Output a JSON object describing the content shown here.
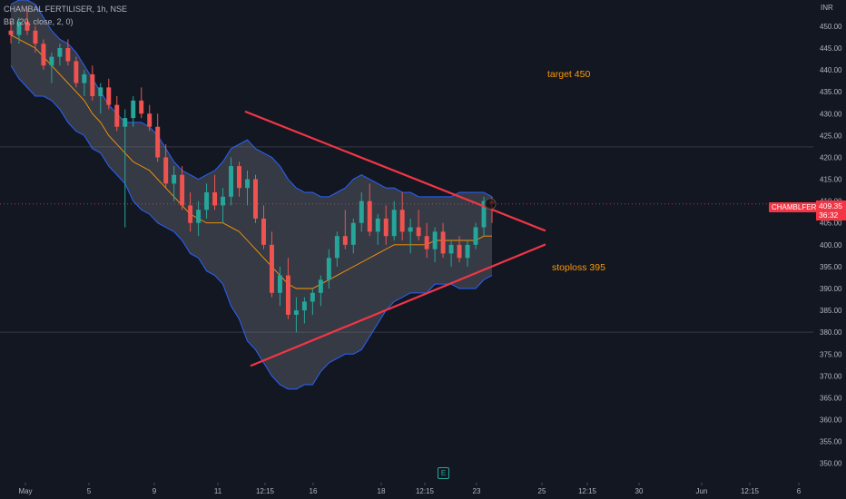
{
  "header": {
    "symbol_line": "CHAMBAL FERTILISER, 1h, NSE",
    "indicator_line": "BB (20, close, 2, 0)"
  },
  "price_axis": {
    "currency": "INR",
    "ticks": [
      "450.00",
      "445.00",
      "440.00",
      "435.00",
      "430.00",
      "425.00",
      "420.00",
      "415.00",
      "410.00",
      "405.00",
      "400.00",
      "395.00",
      "390.00",
      "385.00",
      "380.00",
      "375.00",
      "370.00",
      "365.00",
      "360.00",
      "355.00",
      "350.00"
    ]
  },
  "time_axis": {
    "ticks": [
      "May",
      "5",
      "9",
      "11",
      "12:15",
      "16",
      "18",
      "12:15",
      "23",
      "25",
      "12:15",
      "30",
      "Jun",
      "12:15",
      "6"
    ]
  },
  "last_price": {
    "symbol": "CHAMBLFERT",
    "price": "409.35",
    "countdown": "36:32"
  },
  "annotations": {
    "target": "target 450",
    "stoploss": "stoploss 395"
  },
  "chart_data": {
    "type": "candlestick",
    "ylim": [
      346,
      456
    ],
    "y_ticks": [
      450,
      445,
      440,
      435,
      430,
      425,
      420,
      415,
      410,
      405,
      400,
      395,
      390,
      385,
      380,
      375,
      370,
      365,
      360,
      355,
      350
    ],
    "horizontal_lines": [
      422.4,
      409.35,
      380.0
    ],
    "candles": [
      [
        449,
        451,
        446,
        448
      ],
      [
        448,
        452,
        446,
        451
      ],
      [
        451,
        454,
        448,
        449
      ],
      [
        449,
        450,
        444,
        446
      ],
      [
        446,
        447,
        440,
        441
      ],
      [
        441,
        444,
        437,
        443
      ],
      [
        443,
        446,
        441,
        445
      ],
      [
        445,
        447,
        441,
        442
      ],
      [
        442,
        443,
        436,
        437
      ],
      [
        437,
        440,
        434,
        439
      ],
      [
        439,
        441,
        433,
        434
      ],
      [
        434,
        437,
        430,
        436
      ],
      [
        436,
        438,
        431,
        432
      ],
      [
        432,
        434,
        426,
        427
      ],
      [
        427,
        431,
        404,
        429
      ],
      [
        429,
        434,
        427,
        433
      ],
      [
        433,
        436,
        429,
        430
      ],
      [
        430,
        432,
        426,
        427
      ],
      [
        427,
        430,
        419,
        420
      ],
      [
        420,
        423,
        413,
        414
      ],
      [
        414,
        418,
        410,
        416
      ],
      [
        416,
        418,
        408,
        409
      ],
      [
        409,
        412,
        403,
        405
      ],
      [
        405,
        410,
        402,
        408
      ],
      [
        408,
        414,
        406,
        412
      ],
      [
        412,
        416,
        408,
        409
      ],
      [
        409,
        413,
        405,
        411
      ],
      [
        411,
        420,
        409,
        418
      ],
      [
        418,
        419,
        411,
        413
      ],
      [
        413,
        417,
        409,
        415
      ],
      [
        415,
        416,
        405,
        406
      ],
      [
        406,
        409,
        399,
        400
      ],
      [
        400,
        403,
        388,
        389
      ],
      [
        389,
        395,
        386,
        393
      ],
      [
        393,
        397,
        383,
        384
      ],
      [
        384,
        388,
        380,
        385
      ],
      [
        385,
        388,
        382,
        387
      ],
      [
        387,
        390,
        384,
        389
      ],
      [
        389,
        393,
        386,
        392
      ],
      [
        392,
        399,
        390,
        397
      ],
      [
        397,
        403,
        395,
        402
      ],
      [
        402,
        408,
        399,
        400
      ],
      [
        400,
        406,
        398,
        405
      ],
      [
        405,
        412,
        403,
        410
      ],
      [
        410,
        414,
        402,
        403
      ],
      [
        403,
        407,
        400,
        406
      ],
      [
        406,
        409,
        400,
        402
      ],
      [
        402,
        410,
        401,
        408
      ],
      [
        408,
        412,
        401,
        403
      ],
      [
        403,
        406,
        398,
        404
      ],
      [
        404,
        408,
        401,
        402
      ],
      [
        402,
        405,
        397,
        399
      ],
      [
        399,
        404,
        396,
        403
      ],
      [
        403,
        405,
        397,
        398
      ],
      [
        398,
        401,
        395,
        400
      ],
      [
        400,
        402,
        396,
        397
      ],
      [
        397,
        401,
        395,
        400
      ],
      [
        400,
        405,
        399,
        404
      ],
      [
        404,
        411,
        402,
        410
      ],
      [
        410,
        411,
        405,
        409.35
      ]
    ],
    "bb_upper": [
      455,
      456,
      456,
      455,
      452,
      449,
      447,
      446,
      444,
      441,
      438,
      435,
      432,
      430,
      428,
      428,
      428,
      427,
      425,
      422,
      419,
      417,
      416,
      415,
      416,
      417,
      419,
      422,
      423,
      424,
      422,
      421,
      420,
      418,
      415,
      413,
      412,
      412,
      411,
      411,
      412,
      413,
      415,
      416,
      415,
      414,
      413,
      413,
      412,
      412,
      411,
      411,
      411,
      411,
      411,
      412,
      412,
      412,
      412,
      411
    ],
    "bb_basis": [
      448,
      447,
      446,
      445,
      443,
      441,
      439,
      437,
      435,
      433,
      430,
      428,
      425,
      423,
      421,
      419,
      418,
      417,
      415,
      413,
      411,
      409,
      407,
      406,
      405,
      405,
      405,
      404,
      403,
      401,
      399,
      397,
      395,
      393,
      391,
      390,
      390,
      390,
      391,
      392,
      393,
      394,
      395,
      396,
      397,
      398,
      399,
      400,
      400,
      400,
      400,
      400,
      401,
      401,
      401,
      401,
      401,
      401,
      402,
      402
    ],
    "bb_lower": [
      441,
      438,
      436,
      434,
      434,
      433,
      431,
      428,
      426,
      425,
      422,
      421,
      418,
      416,
      414,
      410,
      408,
      407,
      405,
      404,
      403,
      401,
      398,
      397,
      394,
      393,
      391,
      386,
      383,
      378,
      376,
      373,
      370,
      368,
      367,
      367,
      368,
      368,
      371,
      373,
      374,
      375,
      375,
      376,
      379,
      382,
      385,
      387,
      388,
      389,
      389,
      389,
      391,
      391,
      391,
      390,
      390,
      390,
      392,
      393
    ],
    "trendlines": [
      {
        "from": [
          270,
          430.5
        ],
        "to": [
          601,
          403.2
        ],
        "color": "#f23645"
      },
      {
        "from": [
          276,
          372.3
        ],
        "to": [
          601,
          400.1
        ],
        "color": "#f23645"
      }
    ]
  },
  "colors": {
    "bg": "#131722",
    "up": "#26a69a",
    "down": "#ef5350",
    "band": "#2962ff",
    "basis": "#ff9800",
    "trend": "#f23645",
    "text_note": "#ff9800"
  }
}
